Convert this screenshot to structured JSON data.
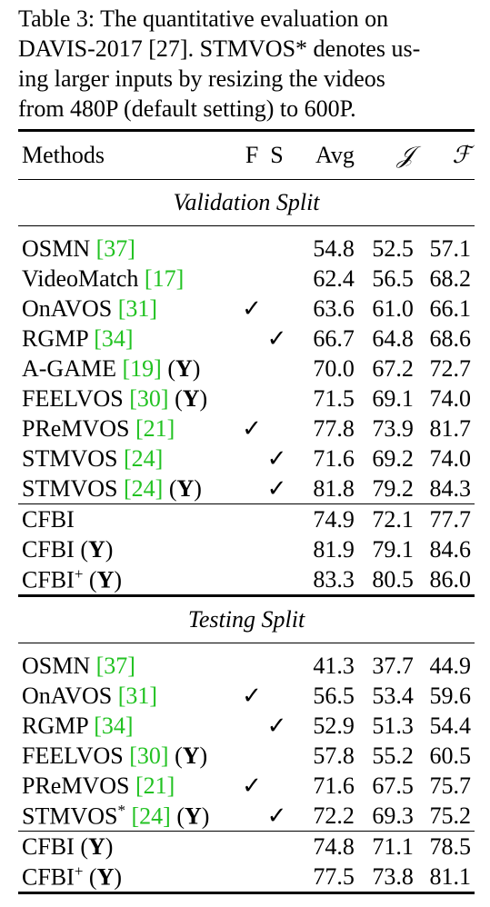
{
  "caption": {
    "lines": [
      "Table 3: The quantitative evaluation on",
      "DAVIS-2017 [27]. STMVOS* denotes us-",
      "ing larger inputs by resizing the videos",
      "from 480P (default setting) to 600P."
    ]
  },
  "table": {
    "headers": {
      "methods": "Methods",
      "f": "F",
      "s": "S",
      "avg": "Avg",
      "j": "𝒥",
      "fm": "ℱ"
    },
    "sections": [
      {
        "title": "Validation Split",
        "rows": [
          {
            "name": "OSMN",
            "ref": "[37]",
            "suffix": "",
            "f": "",
            "s": "",
            "avg": "54.8",
            "j": "52.5",
            "fm": "57.1"
          },
          {
            "name": "VideoMatch",
            "ref": "[17]",
            "suffix": "",
            "f": "",
            "s": "",
            "avg": "62.4",
            "j": "56.5",
            "fm": "68.2"
          },
          {
            "name": "OnAVOS",
            "ref": "[31]",
            "suffix": "",
            "f": "✓",
            "s": "",
            "avg": "63.6",
            "j": "61.0",
            "fm": "66.1"
          },
          {
            "name": "RGMP",
            "ref": "[34]",
            "suffix": "",
            "f": "",
            "s": "✓",
            "avg": "66.7",
            "j": "64.8",
            "fm": "68.6"
          },
          {
            "name": "A-GAME",
            "ref": "[19]",
            "suffix": "(Y)",
            "f": "",
            "s": "",
            "avg": "70.0",
            "j": "67.2",
            "fm": "72.7"
          },
          {
            "name": "FEELVOS",
            "ref": "[30]",
            "suffix": "(Y)",
            "f": "",
            "s": "",
            "avg": "71.5",
            "j": "69.1",
            "fm": "74.0"
          },
          {
            "name": "PReMVOS",
            "ref": "[21]",
            "suffix": "",
            "f": "✓",
            "s": "",
            "avg": "77.8",
            "j": "73.9",
            "fm": "81.7"
          },
          {
            "name": "STMVOS",
            "ref": "[24]",
            "suffix": "",
            "f": "",
            "s": "✓",
            "avg": "71.6",
            "j": "69.2",
            "fm": "74.0"
          },
          {
            "name": "STMVOS",
            "ref": "[24]",
            "suffix": "(Y)",
            "f": "",
            "s": "✓",
            "avg": "81.8",
            "j": "79.2",
            "fm": "84.3"
          }
        ],
        "ours": [
          {
            "name": "CFBI",
            "suffix": "",
            "avg": "74.9",
            "j": "72.1",
            "fm": "77.7"
          },
          {
            "name": "CFBI",
            "suffix": "(Y)",
            "avg": "81.9",
            "j": "79.1",
            "fm": "84.6"
          },
          {
            "name": "CFBI",
            "sup": "+",
            "suffix": "(Y)",
            "avg": "83.3",
            "j": "80.5",
            "fm": "86.0"
          }
        ]
      },
      {
        "title": "Testing Split",
        "rows": [
          {
            "name": "OSMN",
            "ref": "[37]",
            "suffix": "",
            "f": "",
            "s": "",
            "avg": "41.3",
            "j": "37.7",
            "fm": "44.9"
          },
          {
            "name": "OnAVOS",
            "ref": "[31]",
            "suffix": "",
            "f": "✓",
            "s": "",
            "avg": "56.5",
            "j": "53.4",
            "fm": "59.6"
          },
          {
            "name": "RGMP",
            "ref": "[34]",
            "suffix": "",
            "f": "",
            "s": "✓",
            "avg": "52.9",
            "j": "51.3",
            "fm": "54.4"
          },
          {
            "name": "FEELVOS",
            "ref": "[30]",
            "suffix": "(Y)",
            "f": "",
            "s": "",
            "avg": "57.8",
            "j": "55.2",
            "fm": "60.5"
          },
          {
            "name": "PReMVOS",
            "ref": "[21]",
            "suffix": "",
            "f": "✓",
            "s": "",
            "avg": "71.6",
            "j": "67.5",
            "fm": "75.7"
          },
          {
            "name": "STMVOS",
            "sup": "*",
            "ref": "[24]",
            "suffix": "(Y)",
            "f": "",
            "s": "✓",
            "avg": "72.2",
            "j": "69.3",
            "fm": "75.2"
          }
        ],
        "ours": [
          {
            "name": "CFBI",
            "suffix": "(Y)",
            "avg": "74.8",
            "j": "71.1",
            "fm": "78.5"
          },
          {
            "name": "CFBI",
            "sup": "+",
            "suffix": "(Y)",
            "avg": "77.5",
            "j": "73.8",
            "fm": "81.1"
          }
        ]
      }
    ]
  }
}
